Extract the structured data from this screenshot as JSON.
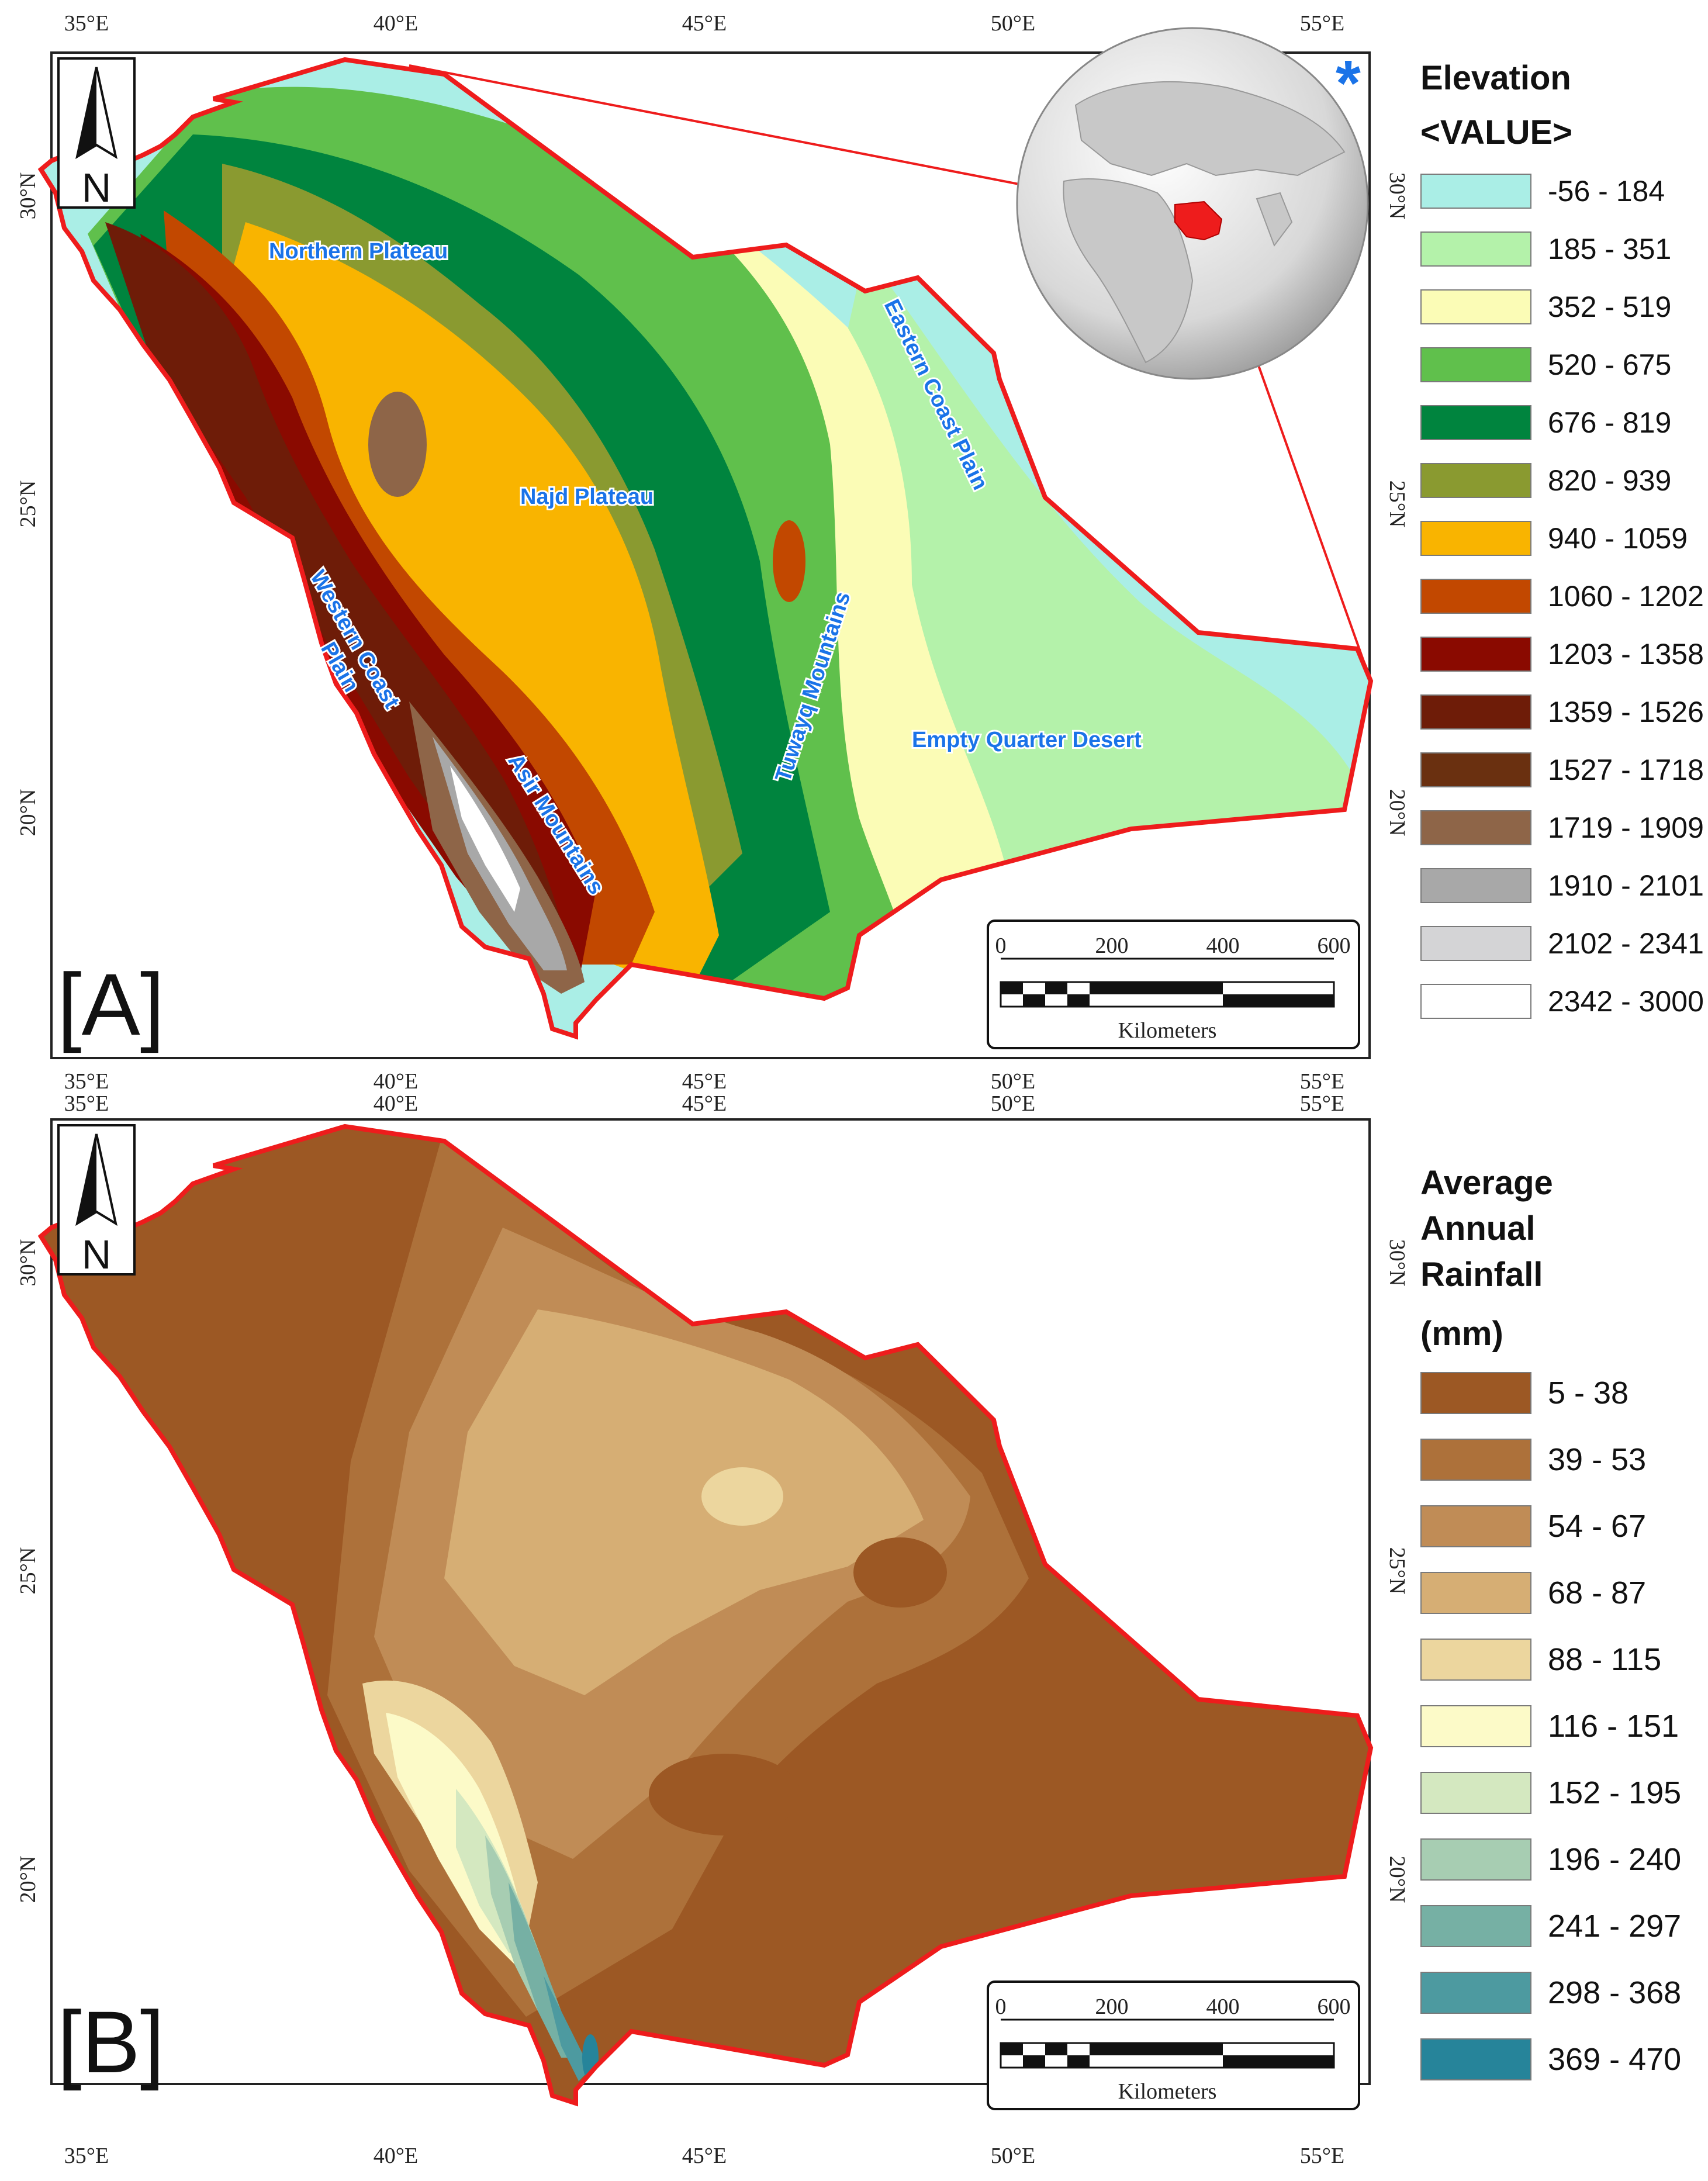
{
  "panel_a": {
    "letter": "[A]",
    "legend_title": "Elevation",
    "legend_subtitle": "<VALUE>",
    "legend": [
      {
        "label": "-56 - 184",
        "color": "#aaeee6"
      },
      {
        "label": "185 - 351",
        "color": "#b4f2aa"
      },
      {
        "label": "352 - 519",
        "color": "#fbfcb6"
      },
      {
        "label": "520 - 675",
        "color": "#60c04c"
      },
      {
        "label": "676 - 819",
        "color": "#00843e"
      },
      {
        "label": "820 - 939",
        "color": "#8a9a30"
      },
      {
        "label": "940 - 1059",
        "color": "#f9b400"
      },
      {
        "label": "1060 - 1202",
        "color": "#c24800"
      },
      {
        "label": "1203 - 1358",
        "color": "#8a0a00"
      },
      {
        "label": "1359 - 1526",
        "color": "#6e1c08"
      },
      {
        "label": "1527 - 1718",
        "color": "#6a3010"
      },
      {
        "label": "1719 - 1909",
        "color": "#8e6548"
      },
      {
        "label": "1910 - 2101",
        "color": "#a8a8a8"
      },
      {
        "label": "2102 - 2341",
        "color": "#d4d4d6"
      },
      {
        "label": "2342 - 3000",
        "color": "#ffffff"
      }
    ],
    "region_labels": {
      "northern_plateau": "Northern Plateau",
      "najd_plateau": "Najd Plateau",
      "eastern_coast_plain": "Eastern Coast Plain",
      "western_coast_plain_1": "Western Coast",
      "western_coast_plain_2": "Plain",
      "asir_mountains": "Asir Mountains",
      "tuwayq_mountains": "Tuwayq Mountains",
      "empty_quarter": "Empty Quarter Desert"
    },
    "inset_marker": "*"
  },
  "panel_b": {
    "letter": "[B]",
    "legend_title_lines": [
      "Average",
      "Annual",
      "Rainfall"
    ],
    "legend_unit": "(mm)",
    "legend": [
      {
        "label": "5 - 38",
        "color": "#9c5824"
      },
      {
        "label": "39 - 53",
        "color": "#ad713a"
      },
      {
        "label": "54 - 67",
        "color": "#c08c56"
      },
      {
        "label": "68 - 87",
        "color": "#d6ae74"
      },
      {
        "label": "88 - 115",
        "color": "#ecd69e"
      },
      {
        "label": "116 - 151",
        "color": "#fcfac8"
      },
      {
        "label": "152 - 195",
        "color": "#d4e8c0"
      },
      {
        "label": "196 - 240",
        "color": "#a7cdb2"
      },
      {
        "label": "241 - 297",
        "color": "#76b0a4"
      },
      {
        "label": "298 - 368",
        "color": "#4d9aa0"
      },
      {
        "label": "369 - 470",
        "color": "#26849a"
      }
    ]
  },
  "axes": {
    "lon_labels": [
      "35°E",
      "40°E",
      "45°E",
      "50°E",
      "55°E"
    ],
    "lat_labels": [
      "30°N",
      "25°N",
      "20°N"
    ]
  },
  "north_arrow_label": "N",
  "scale_bar": {
    "ticks": [
      "0",
      "200",
      "400",
      "600"
    ],
    "unit": "Kilometers"
  },
  "colors": {
    "border": "#ee1c1c",
    "label_blue": "#1a73e8"
  }
}
